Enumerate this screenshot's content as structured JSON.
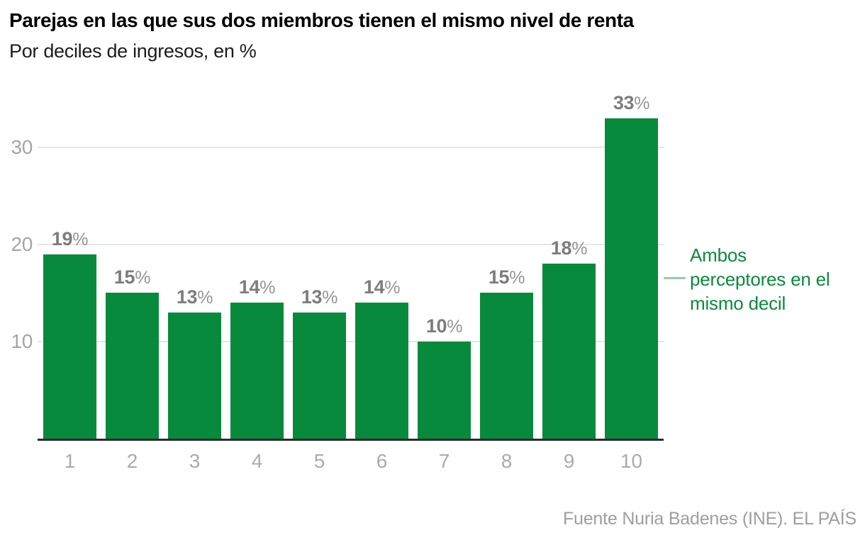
{
  "header": {
    "title": "Parejas en las que sus dos miembros tienen el mismo nivel de renta",
    "subtitle": "Por deciles de ingresos, en %"
  },
  "chart_data": {
    "type": "bar",
    "title": "Parejas en las que sus dos miembros tienen el mismo nivel de renta",
    "subtitle": "Por deciles de ingresos, en %",
    "categories": [
      "1",
      "2",
      "3",
      "4",
      "5",
      "6",
      "7",
      "8",
      "9",
      "10"
    ],
    "values": [
      19,
      15,
      13,
      14,
      13,
      14,
      10,
      15,
      18,
      33
    ],
    "value_suffix": "%",
    "xlabel": "",
    "ylabel": "",
    "ylim": [
      0,
      35
    ],
    "yticks": [
      10,
      20,
      30
    ],
    "grid": true,
    "legend_position": "none",
    "annotation": {
      "lines": [
        "Ambos",
        "perceptores en el",
        "mismo decil"
      ],
      "target_category": "10"
    }
  },
  "footer": {
    "source": "Fuente Nuria Badenes (INE). EL PAÍS"
  },
  "colors": {
    "bar": "#088a3c",
    "annotation_text": "#0a8a3c",
    "connector": "#9bcaa9",
    "value_label": "#7d7d7d",
    "value_label_pct": "#949494",
    "y_axis_label": "#a5a5a5",
    "x_axis_label": "#ababab",
    "gridline": "#e6e6e6",
    "axis_line": "#2b2b2b",
    "title": "#000000",
    "source": "#9e9e9e"
  }
}
